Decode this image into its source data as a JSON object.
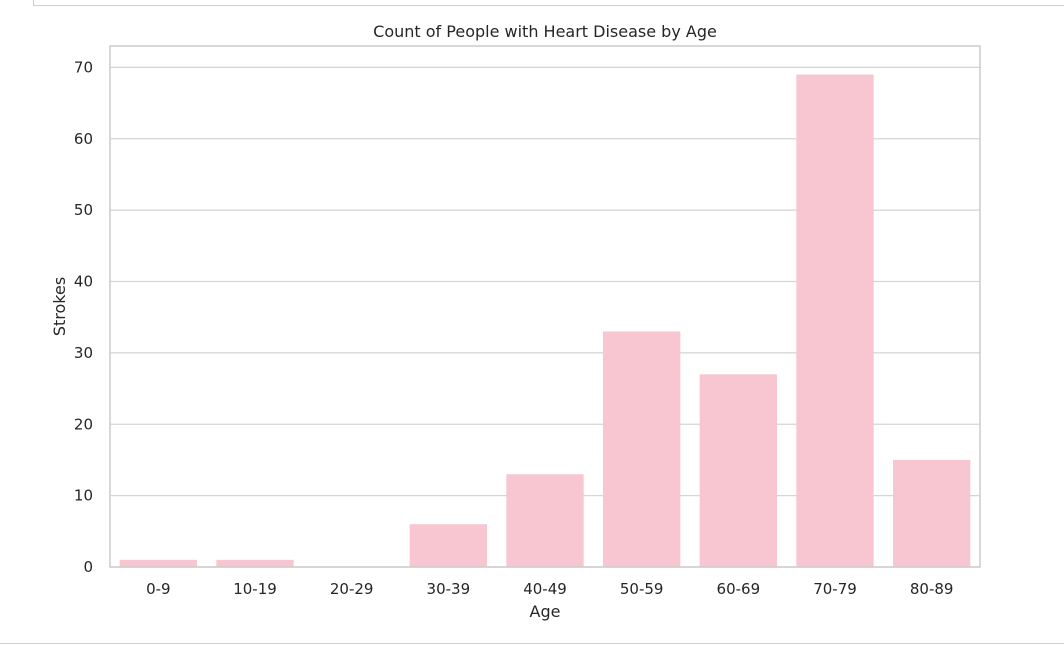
{
  "chart_data": {
    "type": "bar",
    "title": "Count of People with Heart Disease by Age",
    "xlabel": "Age",
    "ylabel": "Strokes",
    "categories": [
      "0-9",
      "10-19",
      "20-29",
      "30-39",
      "40-49",
      "50-59",
      "60-69",
      "70-79",
      "80-89"
    ],
    "values": [
      1,
      1,
      0,
      6,
      13,
      33,
      27,
      69,
      15
    ],
    "ylim": [
      0,
      73
    ],
    "yticks": [
      0,
      10,
      20,
      30,
      40,
      50,
      60,
      70
    ],
    "grid": true,
    "legend": "none",
    "bar_color": "#f7c6d0",
    "grid_color": "#d4d4d6",
    "spine_color": "#cccccc"
  }
}
